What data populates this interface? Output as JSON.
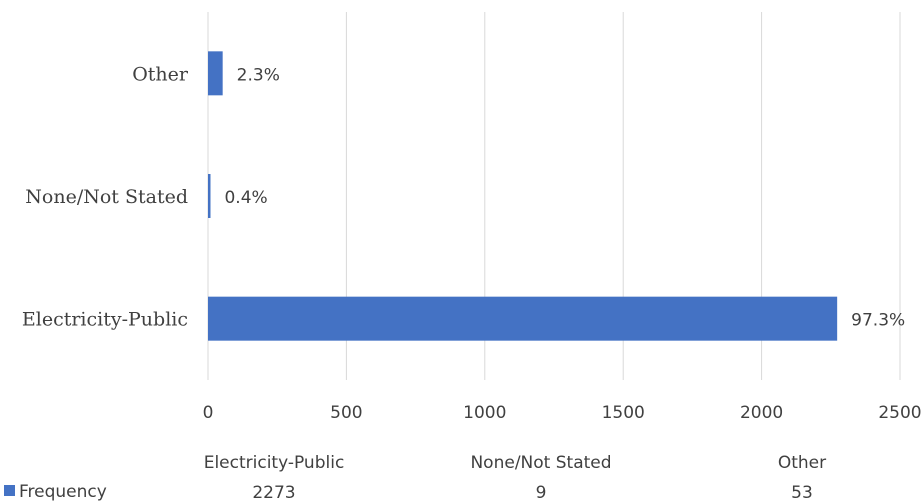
{
  "chart_data": {
    "type": "bar",
    "orientation": "horizontal",
    "categories": [
      "Electricity-Public",
      "None/Not Stated",
      "Other"
    ],
    "series": [
      {
        "name": "Frequency",
        "values": [
          2273,
          9,
          53
        ],
        "data_labels": [
          "97.3%",
          "0.4%",
          "2.3%"
        ],
        "color": "#4472C4"
      }
    ],
    "xlim": [
      0,
      2500
    ],
    "x_ticks": [
      0,
      500,
      1000,
      1500,
      2000,
      2500
    ],
    "grid": "vertical",
    "legend": "bottom-left",
    "data_table": {
      "columns": [
        "Electricity-Public",
        "None/Not Stated",
        "Other"
      ],
      "row_label": "Frequency",
      "values": [
        "2273",
        "9",
        "53"
      ]
    }
  }
}
